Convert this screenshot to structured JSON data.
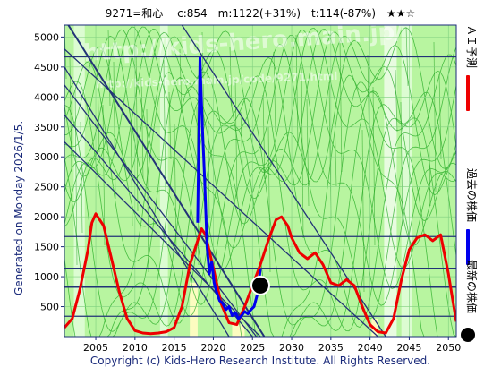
{
  "header": {
    "text": "9271=和心　 c:854　m:1122(+31%)　t:114(-87%)　★★☆"
  },
  "side_label": "Generated on Monday 2026/1/5.",
  "footer": "Copyright (c) Kids-Hero Research Institute. All Rights Reserved.",
  "watermark": {
    "line1": "http://kids-hero.main.jp/",
    "line2": "http://kids-hero.main.jp/code/9271.html"
  },
  "legend": [
    {
      "label": "ＡＩ予測",
      "color": "#ee0000",
      "kind": "line"
    },
    {
      "label": "過去の株価",
      "color": "#0000ee",
      "kind": "line"
    },
    {
      "label": "最新の株価",
      "color": "#000000",
      "kind": "dot"
    }
  ],
  "colors": {
    "band_light": "#b8f5a0",
    "band_pale": "#dcfcd2",
    "band_yellow": "#fcfcc0",
    "green_line": "#22aa22",
    "frame": "#1a2a7a",
    "navy": "#223377"
  },
  "chart_data": {
    "type": "line",
    "xlim": [
      2001,
      2051
    ],
    "ylim": [
      0,
      5200
    ],
    "x_ticks": [
      2005,
      2010,
      2015,
      2020,
      2025,
      2030,
      2035,
      2040,
      2045,
      2050
    ],
    "y_ticks": [
      500,
      1000,
      1500,
      2000,
      2500,
      3000,
      3500,
      4000,
      4500,
      5000
    ],
    "horizontal_lines": [
      4670,
      1670,
      1140,
      830,
      340
    ],
    "diagonal_lines": [
      {
        "x": [
          2001.5,
          2026.5
        ],
        "y": [
          5200,
          0
        ]
      },
      {
        "x": [
          2001.0,
          2041.0
        ],
        "y": [
          4800,
          0
        ]
      },
      {
        "x": [
          2001.0,
          2022.0
        ],
        "y": [
          4500,
          0
        ]
      },
      {
        "x": [
          2001.0,
          2025.5
        ],
        "y": [
          4200,
          0
        ]
      },
      {
        "x": [
          2001.0,
          2025.0
        ],
        "y": [
          3700,
          0
        ]
      },
      {
        "x": [
          2001.0,
          2026.0
        ],
        "y": [
          3250,
          0
        ]
      },
      {
        "x": [
          2016.0,
          2042.0
        ],
        "y": [
          5200,
          0
        ]
      }
    ],
    "series": [
      {
        "name": "ＡＩ予測",
        "x": [
          2001,
          2002,
          2003,
          2004,
          2004.5,
          2005,
          2006,
          2007,
          2008,
          2009,
          2010,
          2011,
          2012,
          2013,
          2014,
          2015,
          2016,
          2017,
          2018,
          2018.5,
          2019,
          2020,
          2021,
          2022,
          2023,
          2024,
          2025,
          2026,
          2027,
          2028,
          2028.7,
          2029.5,
          2030,
          2031,
          2032,
          2033,
          2034,
          2035,
          2036,
          2037,
          2038,
          2039,
          2040,
          2041,
          2042,
          2043,
          2044,
          2045,
          2046,
          2047,
          2048,
          2049,
          2050,
          2051
        ],
        "y": [
          150,
          300,
          800,
          1450,
          1900,
          2050,
          1850,
          1300,
          750,
          300,
          100,
          60,
          50,
          60,
          80,
          150,
          500,
          1200,
          1600,
          1800,
          1700,
          1150,
          550,
          230,
          200,
          500,
          850,
          1200,
          1600,
          1950,
          2000,
          1850,
          1650,
          1400,
          1300,
          1400,
          1200,
          900,
          850,
          950,
          850,
          500,
          200,
          80,
          60,
          300,
          950,
          1450,
          1650,
          1700,
          1600,
          1700,
          1050,
          250
        ]
      },
      {
        "name": "過去の株価",
        "x": [
          2018.0,
          2018.3,
          2018.6,
          2018.9,
          2019.2,
          2019.5,
          2019.8,
          2020.1,
          2020.4,
          2020.8,
          2021.2,
          2021.6,
          2022.0,
          2022.4,
          2022.8,
          2023.2,
          2023.6,
          2024.0,
          2024.4,
          2024.8,
          2025.2,
          2025.6,
          2026.0
        ],
        "y": [
          1900,
          4650,
          3500,
          2600,
          1500,
          1050,
          1250,
          900,
          750,
          600,
          550,
          450,
          500,
          350,
          400,
          300,
          350,
          420,
          380,
          450,
          500,
          700,
          1120
        ]
      }
    ],
    "latest": {
      "x": 2026.0,
      "y": 854
    }
  }
}
